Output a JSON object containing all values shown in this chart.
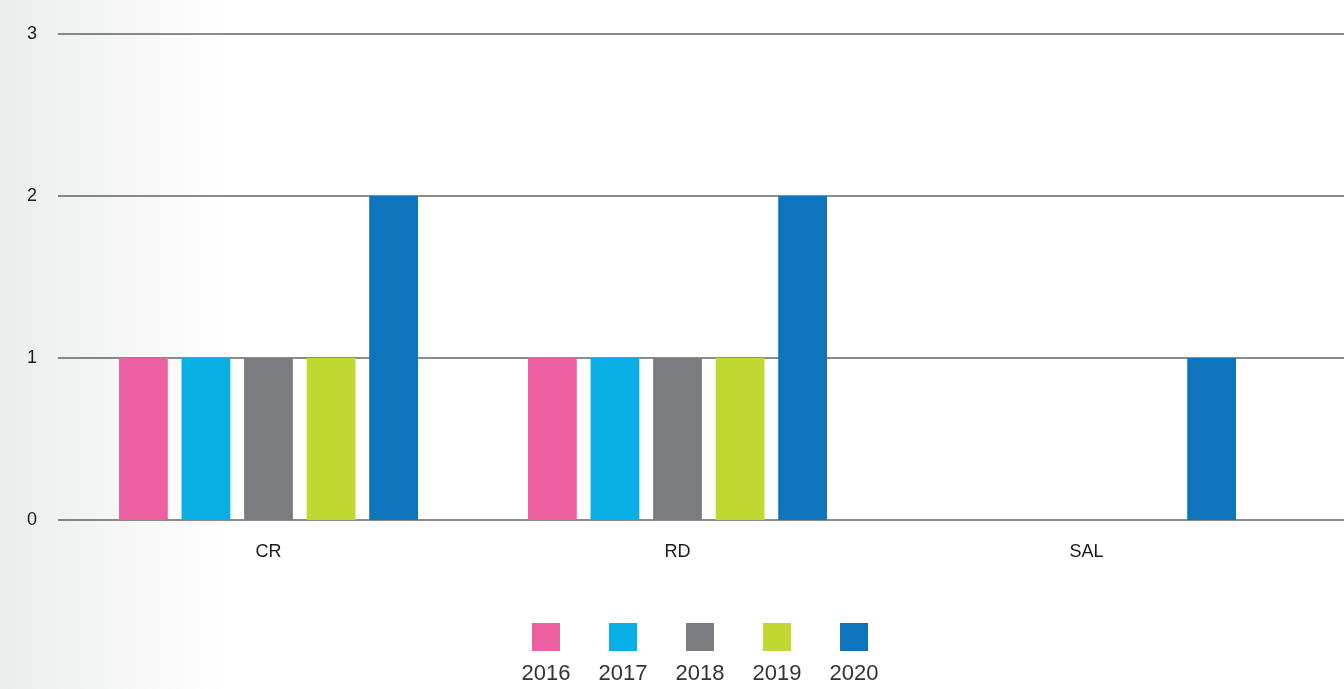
{
  "chart_data": {
    "type": "bar",
    "categories": [
      "CR",
      "RD",
      "SAL"
    ],
    "series": [
      {
        "name": "2016",
        "color": "#ec5fa1",
        "values": [
          1,
          1,
          0
        ]
      },
      {
        "name": "2017",
        "color": "#0aafe6",
        "values": [
          1,
          1,
          0
        ]
      },
      {
        "name": "2018",
        "color": "#7b7c80",
        "values": [
          1,
          1,
          0
        ]
      },
      {
        "name": "2019",
        "color": "#c1d832",
        "values": [
          1,
          1,
          0
        ]
      },
      {
        "name": "2020",
        "color": "#0e74bb",
        "values": [
          2,
          2,
          1
        ]
      }
    ],
    "ylim": [
      0,
      3
    ],
    "yticks": [
      0,
      1,
      2,
      3
    ],
    "grid": "y",
    "legend": "bottom"
  }
}
